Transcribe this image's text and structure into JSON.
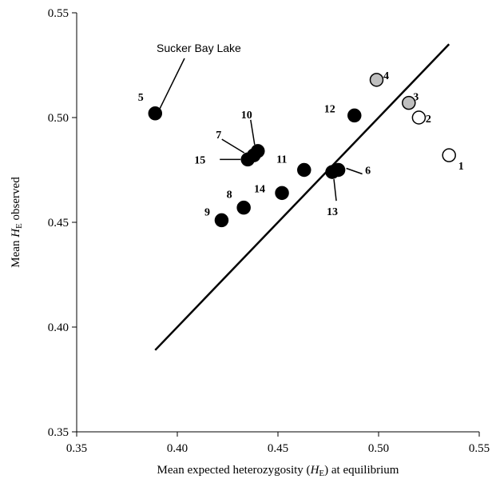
{
  "chart_data": {
    "type": "scatter",
    "xlabel": {
      "pre": "Mean expected heterozygosity (",
      "sym": "H",
      "sub": "E",
      "post": ") at equilibrium"
    },
    "ylabel": {
      "pre": "Mean ",
      "sym": "H",
      "sub": "E",
      "post": " observed"
    },
    "xlim": [
      0.35,
      0.55
    ],
    "ylim": [
      0.35,
      0.55
    ],
    "x_ticks": [
      "0.35",
      "0.40",
      "0.45",
      "0.50",
      "0.55"
    ],
    "y_ticks": [
      "0.35",
      "0.40",
      "0.45",
      "0.50",
      "0.55"
    ],
    "grid": false,
    "colors": {
      "black": "#000000",
      "grey": "#bfbfbf",
      "white": "#ffffff"
    },
    "points": [
      {
        "label": "1",
        "x": 0.535,
        "y": 0.482,
        "fill": "white"
      },
      {
        "label": "2",
        "x": 0.52,
        "y": 0.5,
        "fill": "white"
      },
      {
        "label": "3",
        "x": 0.515,
        "y": 0.507,
        "fill": "grey"
      },
      {
        "label": "4",
        "x": 0.499,
        "y": 0.518,
        "fill": "grey"
      },
      {
        "label": "5",
        "x": 0.389,
        "y": 0.502,
        "fill": "black"
      },
      {
        "label": "6",
        "x": 0.48,
        "y": 0.475,
        "fill": "black"
      },
      {
        "label": "7",
        "x": 0.438,
        "y": 0.482,
        "fill": "black"
      },
      {
        "label": "8",
        "x": 0.433,
        "y": 0.457,
        "fill": "black"
      },
      {
        "label": "9",
        "x": 0.422,
        "y": 0.451,
        "fill": "black"
      },
      {
        "label": "10",
        "x": 0.44,
        "y": 0.484,
        "fill": "black"
      },
      {
        "label": "11",
        "x": 0.463,
        "y": 0.475,
        "fill": "black"
      },
      {
        "label": "12",
        "x": 0.488,
        "y": 0.501,
        "fill": "black"
      },
      {
        "label": "13",
        "x": 0.477,
        "y": 0.474,
        "fill": "black"
      },
      {
        "label": "14",
        "x": 0.452,
        "y": 0.464,
        "fill": "black"
      },
      {
        "label": "15",
        "x": 0.435,
        "y": 0.48,
        "fill": "black"
      }
    ],
    "regression_line": {
      "x": [
        0.389,
        0.535
      ],
      "y": [
        0.389,
        0.535
      ]
    },
    "annotation": "Sucker Bay Lake"
  }
}
